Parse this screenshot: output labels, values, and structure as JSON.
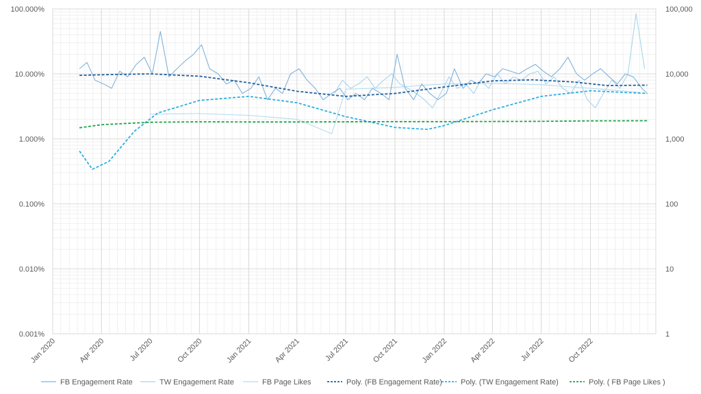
{
  "chart_data": {
    "type": "line",
    "title": "",
    "xlabel": "",
    "ylabel": "",
    "y2label": "",
    "x_axis": {
      "type": "date",
      "range": [
        "2020-01-01",
        "2023-01-31"
      ],
      "tick_labels": [
        {
          "label": "Jan 2020",
          "date": "2020-01-01"
        },
        {
          "label": "Apr 2020",
          "date": "2020-04-01"
        },
        {
          "label": "Jul 2020",
          "date": "2020-07-01"
        },
        {
          "label": "Oct 2020",
          "date": "2020-10-01"
        },
        {
          "label": "Jan 2021",
          "date": "2021-01-01"
        },
        {
          "label": "Apr 2021",
          "date": "2021-04-01"
        },
        {
          "label": "Jul 2021",
          "date": "2021-07-01"
        },
        {
          "label": "Oct 2021",
          "date": "2021-10-01"
        },
        {
          "label": "Jan 2022",
          "date": "2022-01-01"
        },
        {
          "label": "Apr 2022",
          "date": "2022-04-01"
        },
        {
          "label": "Jul 2022",
          "date": "2022-07-01"
        },
        {
          "label": "Oct 2022",
          "date": "2022-10-01"
        }
      ]
    },
    "y_axis": {
      "scale": "log",
      "range": [
        1e-05,
        1
      ],
      "tick_labels": [
        "100.000%",
        "10.000%",
        "1.000%",
        "0.100%",
        "0.010%",
        "0.001%"
      ]
    },
    "y2_axis": {
      "scale": "log",
      "range": [
        1,
        100000
      ],
      "tick_labels": [
        "100,000",
        "10,000",
        "1,000",
        "100",
        "10",
        "1"
      ]
    },
    "grid": true,
    "legend_position": "bottom",
    "series": [
      {
        "name": "FB Engagement Rate",
        "axis": "left",
        "color": "#7fb2db",
        "style": "solid",
        "x": [
          "2020-02-20",
          "2020-03-05",
          "2020-03-20",
          "2020-04-05",
          "2020-04-20",
          "2020-05-05",
          "2020-05-20",
          "2020-06-05",
          "2020-06-20",
          "2020-07-05",
          "2020-07-20",
          "2020-08-05",
          "2020-08-20",
          "2020-09-05",
          "2020-09-20",
          "2020-10-05",
          "2020-10-20",
          "2020-11-05",
          "2020-11-20",
          "2020-12-05",
          "2020-12-20",
          "2021-01-05",
          "2021-01-20",
          "2021-02-05",
          "2021-02-20",
          "2021-03-05",
          "2021-03-20",
          "2021-04-05",
          "2021-04-20",
          "2021-05-05",
          "2021-05-20",
          "2021-06-05",
          "2021-06-20",
          "2021-07-05",
          "2021-07-20",
          "2021-08-05",
          "2021-08-20",
          "2021-09-05",
          "2021-09-20",
          "2021-10-05",
          "2021-10-20",
          "2021-11-05",
          "2021-11-20",
          "2021-12-05",
          "2021-12-20",
          "2022-01-05",
          "2022-01-20",
          "2022-02-05",
          "2022-02-20",
          "2022-03-05",
          "2022-03-20",
          "2022-04-05",
          "2022-04-20",
          "2022-05-05",
          "2022-05-20",
          "2022-06-05",
          "2022-06-20",
          "2022-07-05",
          "2022-07-20",
          "2022-08-05",
          "2022-08-20",
          "2022-09-05",
          "2022-09-20",
          "2022-10-05",
          "2022-10-20",
          "2022-11-05",
          "2022-11-20",
          "2022-12-05",
          "2022-12-20",
          "2023-01-05",
          "2023-01-15"
        ],
        "y": [
          0.12,
          0.15,
          0.08,
          0.07,
          0.06,
          0.11,
          0.09,
          0.14,
          0.18,
          0.1,
          0.45,
          0.09,
          0.12,
          0.16,
          0.2,
          0.28,
          0.12,
          0.1,
          0.07,
          0.08,
          0.05,
          0.06,
          0.09,
          0.04,
          0.06,
          0.05,
          0.1,
          0.12,
          0.08,
          0.06,
          0.04,
          0.05,
          0.06,
          0.04,
          0.05,
          0.04,
          0.06,
          0.05,
          0.04,
          0.2,
          0.06,
          0.04,
          0.07,
          0.05,
          0.04,
          0.05,
          0.12,
          0.06,
          0.08,
          0.07,
          0.1,
          0.09,
          0.12,
          0.11,
          0.1,
          0.12,
          0.14,
          0.11,
          0.09,
          0.12,
          0.18,
          0.1,
          0.08,
          0.1,
          0.12,
          0.09,
          0.07,
          0.1,
          0.09,
          0.06,
          0.05
        ]
      },
      {
        "name": "TW Engagement Rate",
        "axis": "left",
        "color": "#a6d4ee",
        "style": "solid",
        "x": [
          "2021-06-10",
          "2021-06-25",
          "2021-07-10",
          "2021-07-25",
          "2021-08-10",
          "2021-08-25",
          "2021-09-10",
          "2021-09-25",
          "2021-10-10",
          "2021-10-25",
          "2021-11-10",
          "2021-11-25",
          "2021-12-10",
          "2021-12-25",
          "2022-01-10",
          "2022-01-25",
          "2022-02-10",
          "2022-02-25",
          "2022-03-10",
          "2022-03-25",
          "2022-04-10",
          "2022-04-25",
          "2022-05-10",
          "2022-05-25",
          "2022-06-10",
          "2022-06-25",
          "2022-07-10",
          "2022-07-25",
          "2022-08-10",
          "2022-08-25",
          "2022-09-10",
          "2022-09-25",
          "2022-10-10",
          "2022-10-25",
          "2022-11-10",
          "2022-11-25",
          "2022-12-10",
          "2022-12-25",
          "2023-01-10"
        ],
        "y": [
          0.05,
          0.08,
          0.06,
          0.07,
          0.09,
          0.06,
          0.08,
          0.1,
          0.07,
          0.06,
          0.05,
          0.04,
          0.03,
          0.05,
          0.09,
          0.06,
          0.07,
          0.05,
          0.08,
          0.06,
          0.1,
          0.07,
          0.09,
          0.08,
          0.1,
          0.11,
          0.07,
          0.09,
          0.06,
          0.05,
          0.08,
          0.04,
          0.03,
          0.05,
          0.08,
          0.06,
          0.1,
          0.85,
          0.12
        ]
      },
      {
        "name": "FB Page Likes",
        "axis": "right",
        "color": "#b4dcef",
        "style": "solid",
        "x": [
          "2020-07-01",
          "2020-10-01",
          "2021-01-01",
          "2021-04-01",
          "2021-06-05",
          "2021-07-01",
          "2021-10-01",
          "2022-01-01",
          "2022-04-01",
          "2022-07-01",
          "2022-10-01",
          "2023-01-01"
        ],
        "y": [
          2400,
          2450,
          2300,
          2000,
          1200,
          5800,
          6200,
          7000,
          7200,
          6800,
          6000,
          5200
        ]
      },
      {
        "name": "Poly. (FB Engagement Rate)",
        "axis": "left",
        "color": "#1f5f9e",
        "style": "dashed",
        "x": [
          "2020-02-20",
          "2020-05-01",
          "2020-07-01",
          "2020-10-01",
          "2021-01-01",
          "2021-04-01",
          "2021-07-01",
          "2021-10-01",
          "2022-01-01",
          "2022-04-01",
          "2022-06-15",
          "2022-09-01",
          "2022-11-01",
          "2023-01-15"
        ],
        "y": [
          0.095,
          0.098,
          0.1,
          0.092,
          0.073,
          0.054,
          0.045,
          0.05,
          0.063,
          0.078,
          0.081,
          0.075,
          0.066,
          0.067
        ]
      },
      {
        "name": "Poly. (TW Engagement Rate)",
        "axis": "left",
        "color": "#2aaee0",
        "style": "dashed",
        "x": [
          "2020-02-20",
          "2020-03-15",
          "2020-04-15",
          "2020-06-01",
          "2020-07-15",
          "2020-10-01",
          "2021-01-01",
          "2021-04-01",
          "2021-07-01",
          "2021-10-01",
          "2021-12-01",
          "2022-01-01",
          "2022-04-01",
          "2022-07-01",
          "2022-10-01",
          "2023-01-15"
        ],
        "y": [
          0.0065,
          0.0034,
          0.0045,
          0.013,
          0.025,
          0.039,
          0.045,
          0.036,
          0.022,
          0.015,
          0.014,
          0.016,
          0.028,
          0.045,
          0.055,
          0.05
        ]
      },
      {
        "name": "Poly. ( FB Page Likes )",
        "axis": "right",
        "color": "#1fa045",
        "style": "dashed",
        "x": [
          "2020-02-20",
          "2020-04-01",
          "2020-07-01",
          "2020-10-01",
          "2021-01-01",
          "2021-04-01",
          "2021-07-01",
          "2021-10-01",
          "2022-01-01",
          "2022-04-01",
          "2022-07-01",
          "2022-10-01",
          "2023-01-15"
        ],
        "y": [
          1480,
          1650,
          1800,
          1830,
          1820,
          1820,
          1830,
          1840,
          1840,
          1850,
          1860,
          1890,
          1900
        ]
      }
    ]
  }
}
